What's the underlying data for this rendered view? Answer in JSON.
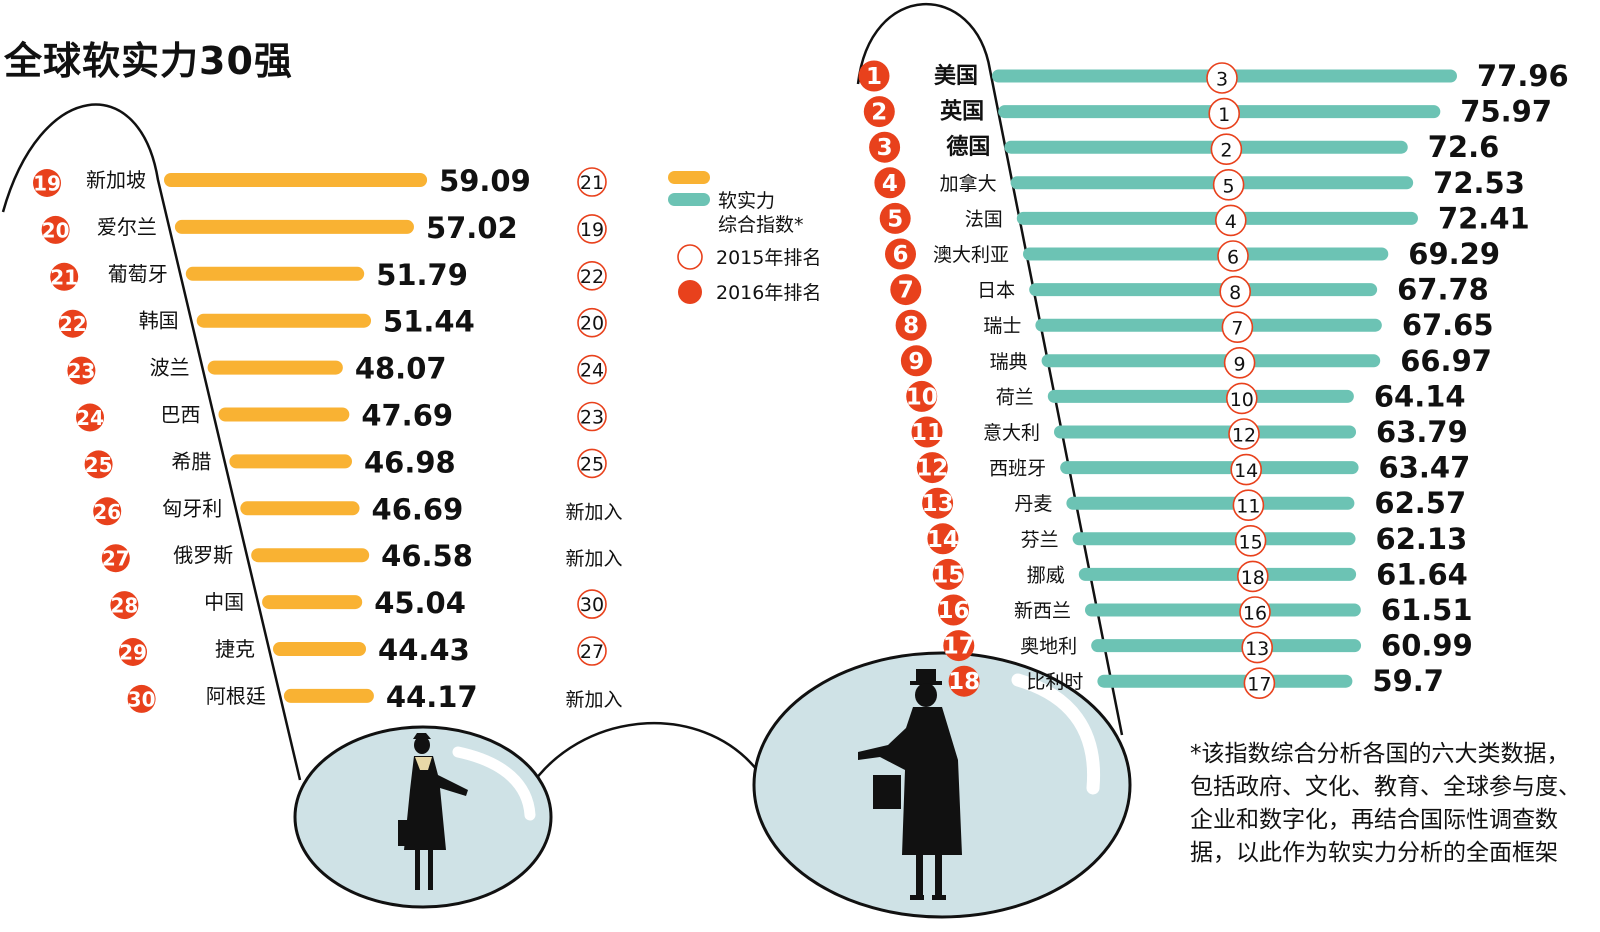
{
  "title": "全球软实力30强",
  "legend": {
    "index_label_line1": "软实力",
    "index_label_line2": "综合指数*",
    "rank2015_label": "2015年排名",
    "rank2016_label": "2016年排名"
  },
  "footnote": "*该指数综合分析各国的六大类数据，包括政府、文化、教育、全球参与度、企业和数字化，再结合国际性调查数据，以此作为软实力分析的全面框架",
  "colors": {
    "right_bar": "#6cc3b4",
    "left_bar": "#f9b233",
    "rank_badge": "#e8411c",
    "lens_fill": "#cfe2e6"
  },
  "chart_data": {
    "type": "bar",
    "title": "全球软实力30强",
    "value_label": "软实力综合指数*",
    "series": [
      {
        "name": "软实力综合指数*",
        "groups": [
          {
            "ranks_2016": [
              1,
              2,
              3,
              4,
              5,
              6,
              7,
              8,
              9,
              10,
              11,
              12,
              13,
              14,
              15,
              16,
              17,
              18
            ],
            "categories": [
              "美国",
              "英国",
              "德国",
              "加拿大",
              "法国",
              "澳大利亚",
              "日本",
              "瑞士",
              "瑞典",
              "荷兰",
              "意大利",
              "西班牙",
              "丹麦",
              "芬兰",
              "挪威",
              "新西兰",
              "奥地利",
              "比利时"
            ],
            "values": [
              77.96,
              75.97,
              72.6,
              72.53,
              72.41,
              69.29,
              67.78,
              67.65,
              66.97,
              64.14,
              63.79,
              63.47,
              62.57,
              62.13,
              61.64,
              61.51,
              60.99,
              59.7
            ],
            "ranks_2015": [
              "3",
              "1",
              "2",
              "5",
              "4",
              "6",
              "8",
              "7",
              "9",
              "10",
              "12",
              "14",
              "11",
              "15",
              "18",
              "16",
              "13",
              "17"
            ]
          },
          {
            "ranks_2016": [
              19,
              20,
              21,
              22,
              23,
              24,
              25,
              26,
              27,
              28,
              29,
              30
            ],
            "categories": [
              "新加坡",
              "爱尔兰",
              "葡萄牙",
              "韩国",
              "波兰",
              "巴西",
              "希腊",
              "匈牙利",
              "俄罗斯",
              "中国",
              "捷克",
              "阿根廷"
            ],
            "values": [
              59.09,
              57.02,
              51.79,
              51.44,
              48.07,
              47.69,
              46.98,
              46.69,
              46.58,
              45.04,
              44.43,
              44.17
            ],
            "ranks_2015": [
              "21",
              "19",
              "22",
              "20",
              "24",
              "23",
              "25",
              "新加入",
              "新加入",
              "30",
              "27",
              "新加入"
            ]
          }
        ]
      }
    ]
  }
}
